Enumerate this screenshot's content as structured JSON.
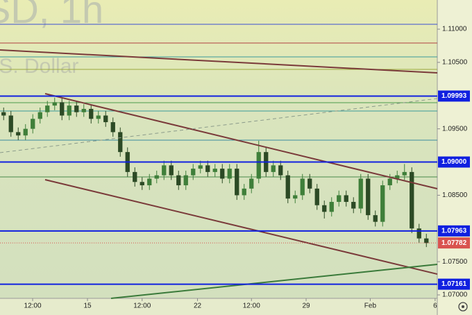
{
  "chart_data": {
    "type": "candlestick",
    "watermark": [
      "SD, 1h",
      ".S. Dollar"
    ],
    "xlim": [
      0,
      60
    ],
    "ylim": [
      1.06948,
      1.11439
    ],
    "xticks": [
      {
        "value": 4.48,
        "label": "12:00"
      },
      {
        "value": 12,
        "label": "15"
      },
      {
        "value": 19.5,
        "label": "12:00"
      },
      {
        "value": 27.1,
        "label": "22"
      },
      {
        "value": 34.5,
        "label": "12:00"
      },
      {
        "value": 42,
        "label": "29"
      },
      {
        "value": 50.8,
        "label": "Feb"
      },
      {
        "value": 59.7,
        "label": "6"
      }
    ],
    "yticks": [
      {
        "value": 1.11,
        "label": "1.11000"
      },
      {
        "value": 1.105,
        "label": "1.10500"
      },
      {
        "value": 1.095,
        "label": "1.09500"
      },
      {
        "value": 1.085,
        "label": "1.08500"
      },
      {
        "value": 1.075,
        "label": "1.07500"
      },
      {
        "value": 1.07,
        "label": "1.07000"
      }
    ],
    "up_color": "#3f7f3a",
    "down_color": "#2c4a25",
    "open": [
      1.0975,
      1.097,
      1.0945,
      1.094,
      1.095,
      1.0965,
      1.0975,
      1.0985,
      1.099,
      1.097,
      1.0985,
      1.0975,
      1.098,
      1.0965,
      1.097,
      1.096,
      1.0945,
      1.0915,
      1.0885,
      1.087,
      1.0865,
      1.0875,
      1.088,
      1.0895,
      1.088,
      1.0865,
      1.088,
      1.089,
      1.0895,
      1.0885,
      1.089,
      1.0875,
      1.089,
      1.085,
      1.086,
      1.0875,
      1.0915,
      1.0885,
      1.0895,
      1.088,
      1.0845,
      1.085,
      1.0875,
      1.086,
      1.0835,
      1.0825,
      1.084,
      1.085,
      1.084,
      1.083,
      1.0875,
      1.082,
      1.081,
      1.0865,
      1.0875,
      1.088,
      1.0885,
      1.08,
      1.0785
    ],
    "high": [
      1.0982,
      1.0977,
      1.0952,
      1.0957,
      1.0972,
      1.0982,
      1.0992,
      1.0997,
      1.0997,
      1.0992,
      1.0992,
      1.0987,
      1.0987,
      1.0977,
      1.0977,
      1.0967,
      1.0952,
      1.0922,
      1.0892,
      1.0877,
      1.0882,
      1.0887,
      1.0902,
      1.0902,
      1.0887,
      1.0887,
      1.0897,
      1.0902,
      1.0902,
      1.0897,
      1.0897,
      1.0897,
      1.0897,
      1.0867,
      1.0882,
      1.0932,
      1.0922,
      1.0902,
      1.0902,
      1.0887,
      1.0857,
      1.0882,
      1.0882,
      1.0867,
      1.0842,
      1.0847,
      1.0857,
      1.0857,
      1.0847,
      1.0882,
      1.0882,
      1.0827,
      1.0872,
      1.0882,
      1.0887,
      1.0897,
      1.0892,
      1.0807,
      1.0792
    ],
    "low": [
      1.0963,
      1.0938,
      1.0933,
      1.0933,
      1.0943,
      1.0958,
      1.0968,
      1.0978,
      1.0963,
      1.0963,
      1.0968,
      1.0968,
      1.0958,
      1.0958,
      1.0953,
      1.0938,
      1.0908,
      1.0878,
      1.0863,
      1.0858,
      1.0858,
      1.0868,
      1.0873,
      1.0873,
      1.0858,
      1.0858,
      1.0873,
      1.0883,
      1.0878,
      1.0878,
      1.0868,
      1.0868,
      1.0843,
      1.0843,
      1.0853,
      1.0868,
      1.0878,
      1.0878,
      1.0873,
      1.0838,
      1.0838,
      1.0843,
      1.0853,
      1.0828,
      1.0815,
      1.0818,
      1.0833,
      1.0833,
      1.0823,
      1.0823,
      1.0813,
      1.0803,
      1.0803,
      1.0858,
      1.0868,
      1.0873,
      1.0793,
      1.0778,
      1.0772
    ],
    "close": [
      1.097,
      1.0945,
      1.094,
      1.095,
      1.0965,
      1.0975,
      1.0985,
      1.099,
      1.097,
      1.0985,
      1.0975,
      1.098,
      1.0965,
      1.097,
      1.096,
      1.0945,
      1.0915,
      1.0885,
      1.087,
      1.0865,
      1.0875,
      1.088,
      1.0895,
      1.088,
      1.0865,
      1.088,
      1.089,
      1.0895,
      1.0885,
      1.089,
      1.0875,
      1.089,
      1.085,
      1.086,
      1.0875,
      1.0915,
      1.0885,
      1.0895,
      1.088,
      1.0845,
      1.085,
      1.0875,
      1.086,
      1.0835,
      1.0825,
      1.084,
      1.085,
      1.084,
      1.083,
      1.0875,
      1.082,
      1.081,
      1.0865,
      1.0875,
      1.088,
      1.0885,
      1.08,
      1.0785,
      1.0778
    ],
    "thin_levels": [
      {
        "value": 1.11073,
        "color": "#3b4fd1"
      },
      {
        "value": 1.10791,
        "color": "#b04040"
      },
      {
        "value": 1.10582,
        "color": "#3a9a9a"
      },
      {
        "value": 1.10394,
        "color": "#9aa83a"
      },
      {
        "value": 1.09893,
        "color": "#4a9a4a"
      },
      {
        "value": 1.09768,
        "color": "#3a9a9a"
      },
      {
        "value": 1.09329,
        "color": "#3a8aa0"
      },
      {
        "value": 1.08776,
        "color": "#4a8a4a"
      }
    ],
    "levels": [
      {
        "value": 1.09993,
        "label": "1.09993"
      },
      {
        "value": 1.09,
        "label": "1.09000"
      },
      {
        "value": 1.07963,
        "label": "1.07963"
      },
      {
        "value": 1.07161,
        "label": "1.07161"
      }
    ],
    "level_color": "#1020e0",
    "last_price": 1.07782,
    "last_color": "#d9534f",
    "trendlines": [
      {
        "x": [
          0,
          60
        ],
        "y": [
          1.10687,
          1.10342
        ],
        "color": "#7a3a3a"
      },
      {
        "x": [
          6.19,
          60
        ],
        "y": [
          1.10029,
          1.08598
        ],
        "color": "#7a3a3a"
      },
      {
        "x": [
          6.19,
          60
        ],
        "y": [
          1.08734,
          1.07313
        ],
        "color": "#7a3a3a"
      },
      {
        "x": [
          0,
          60
        ],
        "y": [
          1.09141,
          1.09956
        ],
        "color": "#8a9a8a",
        "dashed": true
      },
      {
        "x": [
          15.24,
          60
        ],
        "y": [
          1.06948,
          1.0746
        ],
        "color": "#3a7a3a"
      }
    ]
  }
}
